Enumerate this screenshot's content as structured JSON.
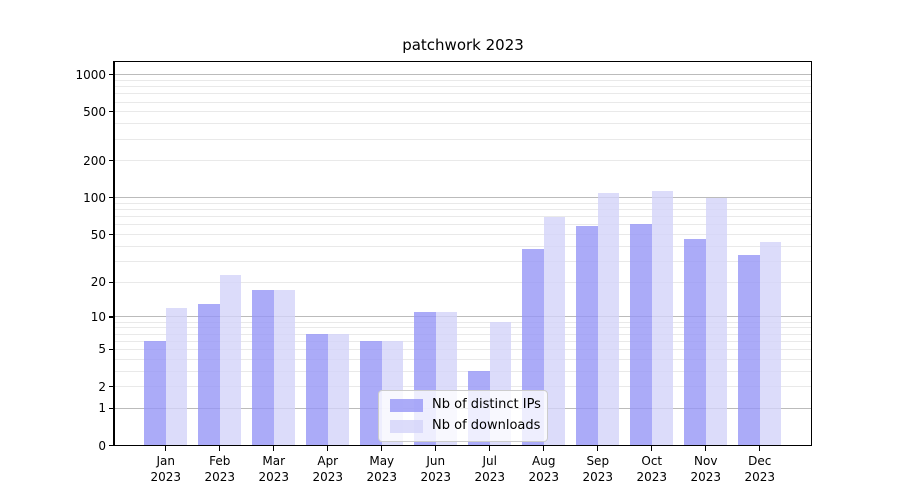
{
  "title": "patchwork 2023",
  "chart_data": {
    "type": "bar",
    "title": "patchwork 2023",
    "categories": [
      "Jan 2023",
      "Feb 2023",
      "Mar 2023",
      "Apr 2023",
      "May 2023",
      "Jun 2023",
      "Jul 2023",
      "Aug 2023",
      "Sep 2023",
      "Oct 2023",
      "Nov 2023",
      "Dec 2023"
    ],
    "series": [
      {
        "name": "Nb of distinct IPs",
        "color": "#9696f6",
        "opacity": 0.8,
        "values": [
          6,
          13,
          17,
          7,
          6,
          11,
          3,
          38,
          59,
          61,
          46,
          34
        ]
      },
      {
        "name": "Nb of downloads",
        "color": "#d3d3f9",
        "opacity": 0.8,
        "values": [
          12,
          23,
          17,
          7,
          6,
          11,
          9,
          70,
          110,
          113,
          100,
          43
        ]
      }
    ],
    "xlabel": "",
    "ylabel": "",
    "yscale": "log1p",
    "ylim": [
      0,
      1273
    ],
    "yticks_labeled": [
      0,
      1,
      2,
      5,
      10,
      20,
      50,
      100,
      200,
      500,
      1000
    ],
    "yticks_major_grid": [
      1,
      10,
      100,
      1000
    ],
    "grid": true,
    "legend_position": "lower center",
    "colors": {
      "major_grid": "#bbbbbb",
      "minor_grid": "#e9e9e9",
      "spine": "#000000",
      "text": "#000000"
    }
  }
}
